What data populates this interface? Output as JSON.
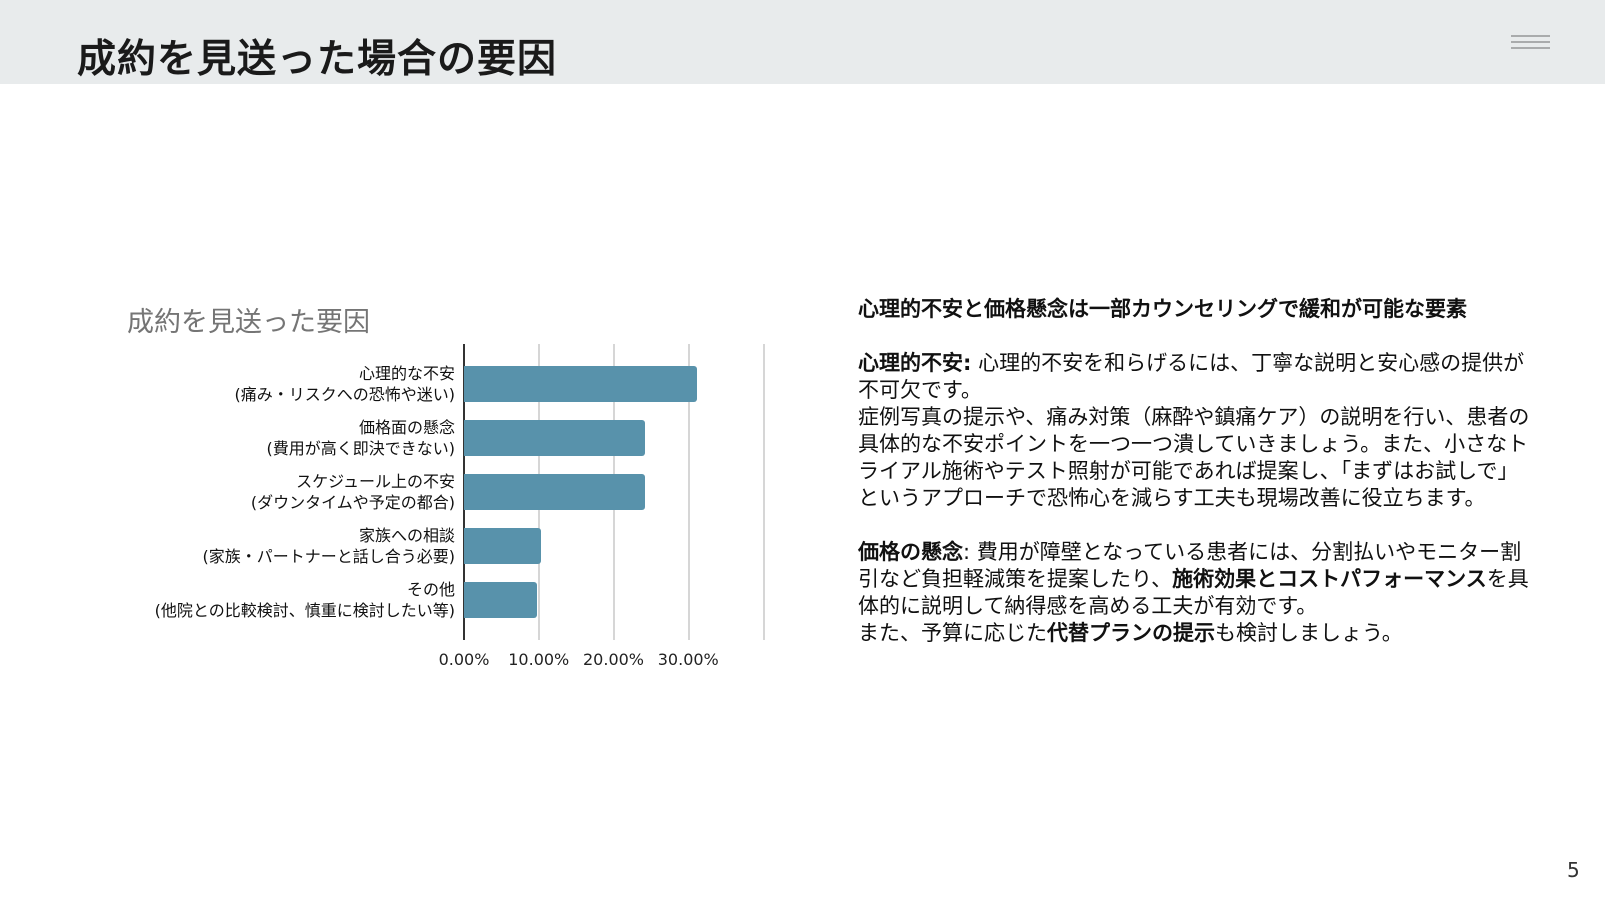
{
  "header": {
    "title": "成約を見送った場合の要因",
    "menu_icon": "hamburger-menu-icon"
  },
  "chart_data": {
    "type": "bar",
    "orientation": "horizontal",
    "title": "成約を見送った要因",
    "categories": [
      "心理的な不安\n(痛み・リスクへの恐怖や迷い)",
      "価格面の懸念\n(費用が高く即決できない)",
      "スケジュール上の不安\n(ダウンタイムや予定の都合)",
      "家族への相談\n(家族・パートナーと話し合う必要)",
      "その他\n(他院との比較検討、慎重に検討したい等)"
    ],
    "category_lines": [
      [
        "心理的な不安",
        "(痛み・リスクへの恐怖や迷い)"
      ],
      [
        "価格面の懸念",
        "(費用が高く即決できない)"
      ],
      [
        "スケジュール上の不安",
        "(ダウンタイムや予定の都合)"
      ],
      [
        "家族への相談",
        "(家族・パートナーと話し合う必要)"
      ],
      [
        "その他",
        "(他院との比較検討、慎重に検討したい等)"
      ]
    ],
    "values": [
      31.2,
      24.2,
      24.2,
      10.3,
      9.8
    ],
    "xlabel": "",
    "ylabel": "",
    "xlim": [
      0,
      40
    ],
    "x_ticks": [
      "0.00%",
      "10.00%",
      "20.00%",
      "30.00%"
    ],
    "grid": true,
    "legend": "none",
    "bar_color": "#5892ab"
  },
  "text": {
    "headline": "心理的不安と価格懸念は一部カウンセリングで緩和が可能な要素",
    "p1_label": "心理的不安:",
    "p1_line1": " 心理的不安を和らげるには、丁寧な説明と安心感の提供が不可欠です。",
    "p1_line2": "症例写真の提示や、痛み対策（麻酔や鎮痛ケア）の説明を行い、患者の具体的な不安ポイントを一つ一つ潰していきましょう。また、小さなトライアル施術やテスト照射が可能であれば提案し、「まずはお試しで」というアプローチで恐怖心を減らす工夫も現場改善に役立ちます。",
    "p2_label": "価格の懸念",
    "p2_a": ": 費用が障壁となっている患者には、分割払いやモニター割引など負担軽減策を提案したり、",
    "p2_bold1": "施術効果とコストパフォーマンス",
    "p2_b": "を具体的に説明して納得感を高める工夫が有効です。",
    "p2_c": "また、予算に応じた",
    "p2_bold2": "代替プランの提示",
    "p2_d": "も検討しましょう。"
  },
  "footer": {
    "page_number": "5"
  }
}
